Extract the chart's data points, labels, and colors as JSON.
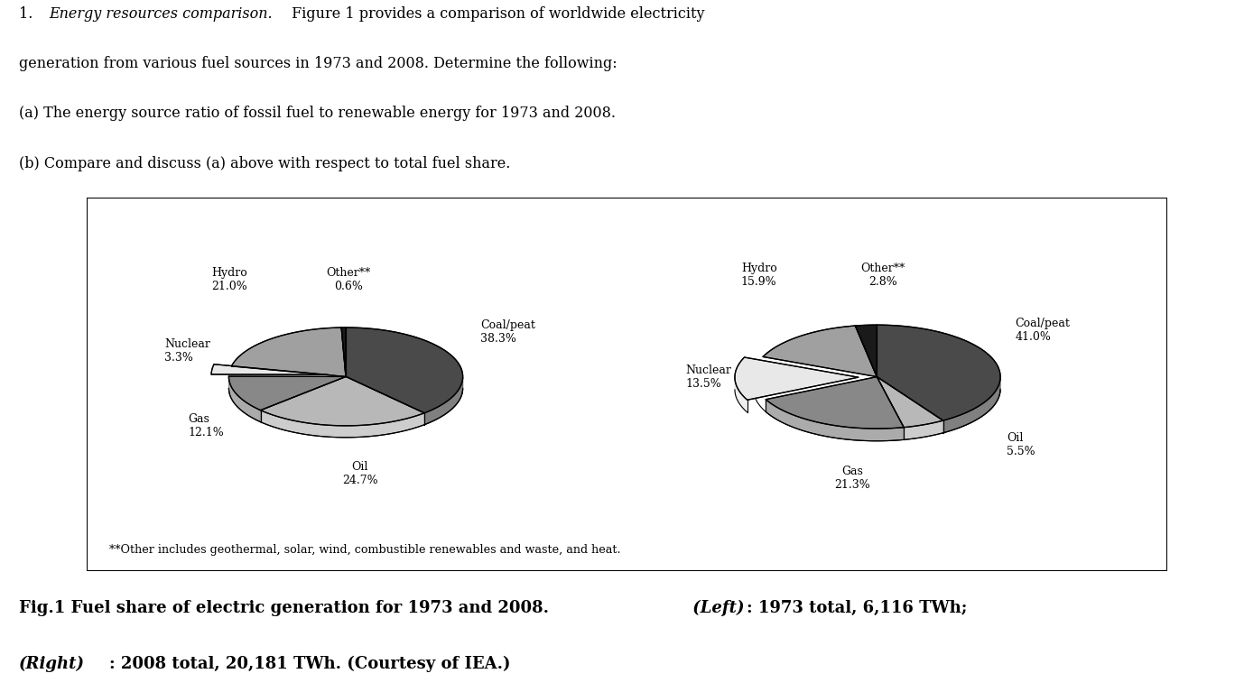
{
  "chart1_labels": [
    "Coal/peat",
    "Oil",
    "Gas",
    "Nuclear",
    "Hydro",
    "Other**"
  ],
  "chart1_values": [
    38.3,
    24.7,
    12.1,
    3.3,
    21.0,
    0.6
  ],
  "chart1_colors": [
    "#4a4a4a",
    "#b8b8b8",
    "#888888",
    "#e8e8e8",
    "#a0a0a0",
    "#1a1a1a"
  ],
  "chart2_labels": [
    "Coal/peat",
    "Oil",
    "Gas",
    "Nuclear",
    "Hydro",
    "Other**"
  ],
  "chart2_values": [
    41.0,
    5.5,
    21.3,
    13.5,
    15.9,
    2.8
  ],
  "chart2_colors": [
    "#4a4a4a",
    "#b8b8b8",
    "#888888",
    "#e8e8e8",
    "#a0a0a0",
    "#1a1a1a"
  ],
  "footnote": "**Other includes geothermal, solar, wind, combustible renewables and waste, and heat.",
  "text_color": "#000000",
  "bg_color": "#ffffff",
  "label_fontsize": 9.0,
  "text_fontsize": 11.5,
  "caption_fontsize": 13.0
}
